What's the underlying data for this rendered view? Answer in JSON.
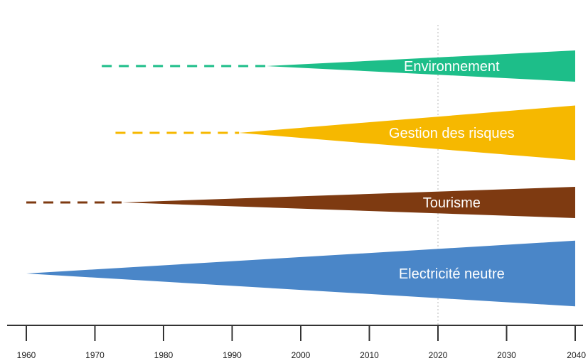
{
  "chart_data": {
    "type": "area",
    "title": "",
    "xlabel": "",
    "ylabel": "",
    "x_range": [
      1960,
      2042
    ],
    "x_ticks": [
      1960,
      1970,
      1980,
      1990,
      2000,
      2010,
      2020,
      2030,
      2040
    ],
    "x_tick_labels": [
      "1960",
      "1970",
      "1980",
      "1990",
      "2000",
      "2010",
      "2020",
      "2030",
      "2040"
    ],
    "reference_year": 2020,
    "grid": false,
    "legend": "none",
    "series": [
      {
        "name": "Environnement",
        "dashed_from": 1971,
        "solid_from": 1995,
        "end": 2040,
        "end_width": 1.0,
        "color": "#1DBE89"
      },
      {
        "name": "Gestion des risques",
        "dashed_from": 1973,
        "solid_from": 1991,
        "end": 2040,
        "end_width": 1.75,
        "color": "#F6B800"
      },
      {
        "name": "Tourisme",
        "dashed_from": 1960,
        "solid_from": 1974,
        "end": 2040,
        "end_width": 1.0,
        "color": "#7E3A11"
      },
      {
        "name": "Electricité neutre",
        "dashed_from": null,
        "solid_from": 1960,
        "end": 2040,
        "end_width": 2.1,
        "color": "#4A86C8"
      }
    ]
  }
}
